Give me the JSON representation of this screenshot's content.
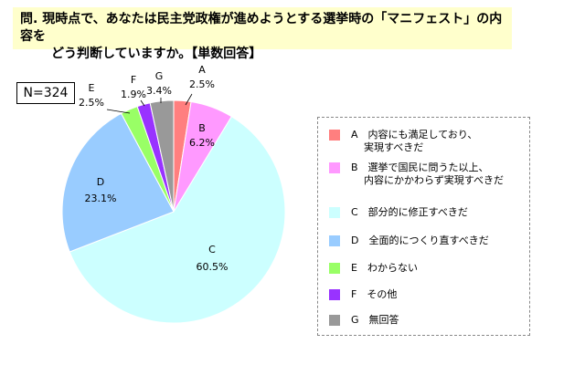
{
  "title": {
    "line1": "問. 現時点で、あなたは民主党政権が進めようとする選挙時の「マニフェスト」の内容を",
    "line2": "どう判断していますか。【単数回答】"
  },
  "sample_size": "N=324",
  "chart_data": {
    "type": "pie",
    "slices": [
      {
        "key": "A",
        "pct": "2.5%",
        "value": 2.5,
        "color": "#ff7f7f",
        "legend": [
          "A　内容にも満足しており、",
          "実現すべきだ"
        ]
      },
      {
        "key": "B",
        "pct": "6.2%",
        "value": 6.2,
        "color": "#ff99ff",
        "legend": [
          "B　選挙で国民に問うた以上、",
          "内容にかかわらず実現すべきだ"
        ]
      },
      {
        "key": "C",
        "pct": "60.5%",
        "value": 60.5,
        "color": "#ccffff",
        "legend": [
          "C　部分的に修正すべきだ"
        ]
      },
      {
        "key": "D",
        "pct": "23.1%",
        "value": 23.1,
        "color": "#99ccff",
        "legend": [
          "D　全面的につくり直すべきだ"
        ]
      },
      {
        "key": "E",
        "pct": "2.5%",
        "value": 2.5,
        "color": "#99ff66",
        "legend": [
          "E　わからない"
        ]
      },
      {
        "key": "F",
        "pct": "1.9%",
        "value": 1.9,
        "color": "#9933ff",
        "legend": [
          "F　その他"
        ]
      },
      {
        "key": "G",
        "pct": "3.4%",
        "value": 3.4,
        "color": "#999999",
        "legend": [
          "G　無回答"
        ]
      }
    ],
    "legend_placement": "right",
    "start": "top",
    "direction": "clockwise"
  }
}
